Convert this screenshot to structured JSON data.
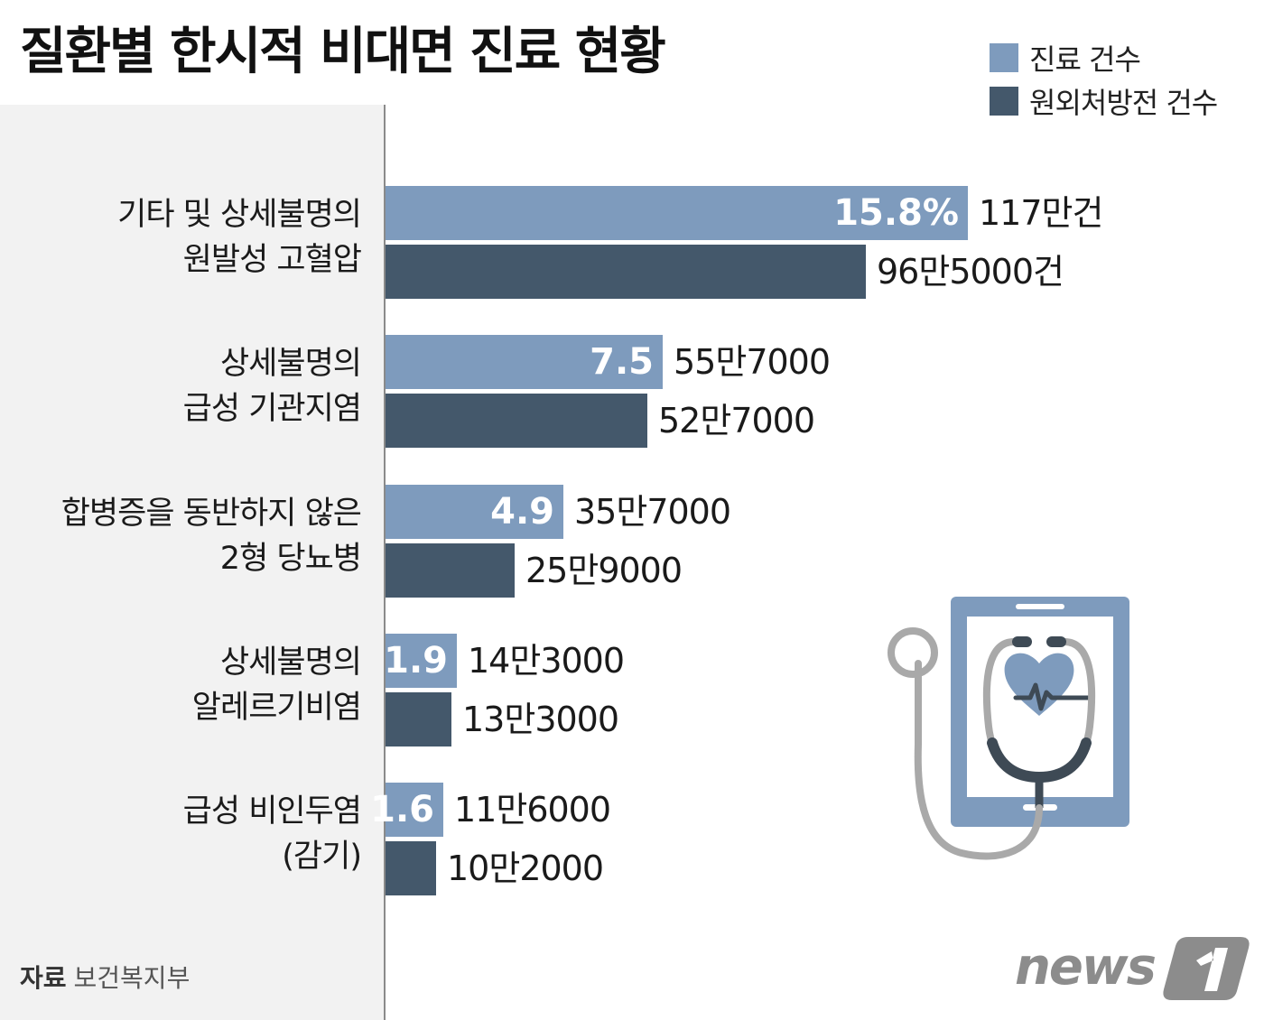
{
  "title": "질환별 한시적 비대면 진료 현황",
  "source": {
    "label": "자료",
    "value": "보건복지부"
  },
  "logo_text": "news",
  "logo_number": "1",
  "colors": {
    "series1": "#7e9bbd",
    "series2": "#44586b"
  },
  "legend": [
    {
      "name": "진료 건수"
    },
    {
      "name": "원외처방전 건수"
    }
  ],
  "chart_data": {
    "type": "bar",
    "orientation": "horizontal",
    "title": "질환별 한시적 비대면 진료 현황",
    "categories": [
      [
        "기타 및 상세불명의",
        "원발성 고혈압"
      ],
      [
        "상세불명의",
        "급성 기관지염"
      ],
      [
        "합병증을 동반하지 않은",
        "2형 당뇨병"
      ],
      [
        "상세불명의",
        "알레르기비염"
      ],
      [
        "급성 비인두염",
        "(감기)"
      ]
    ],
    "series": [
      {
        "name": "진료 건수",
        "values": [
          1170000,
          557000,
          357000,
          143000,
          116000
        ],
        "value_labels": [
          "117만건",
          "55만7000",
          "35만7000",
          "14만3000",
          "11만6000"
        ],
        "share_labels": [
          "15.8%",
          "7.5",
          "4.9",
          "1.9",
          "1.6"
        ]
      },
      {
        "name": "원외처방전 건수",
        "values": [
          965000,
          527000,
          259000,
          133000,
          102000
        ],
        "value_labels": [
          "96만5000건",
          "52만7000",
          "25만9000",
          "13만3000",
          "10만2000"
        ]
      }
    ],
    "legend_position": "top-right",
    "grid": false
  }
}
